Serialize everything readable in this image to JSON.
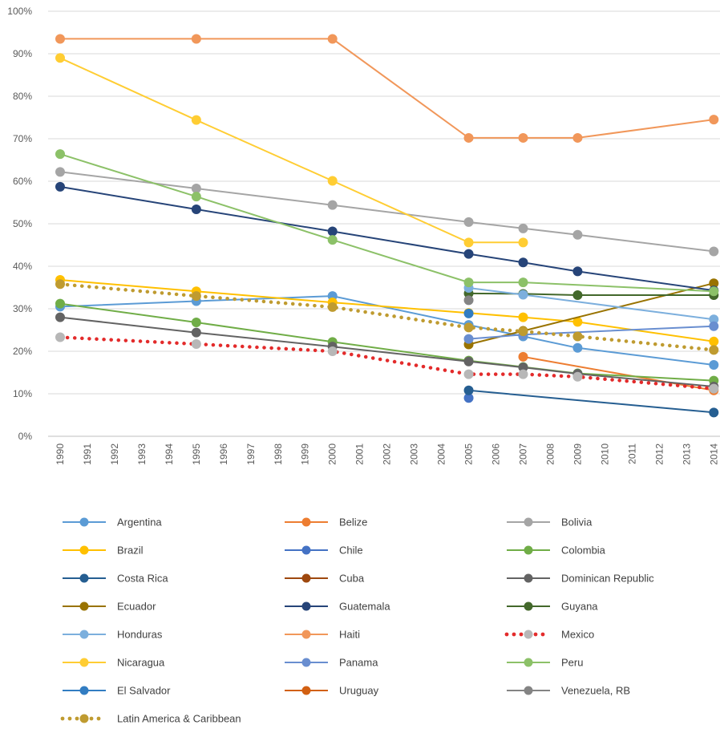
{
  "chart_data": {
    "type": "line",
    "title": "",
    "xlabel": "",
    "ylabel": "",
    "ylim": [
      0,
      100
    ],
    "y_ticks": [
      "0%",
      "10%",
      "20%",
      "30%",
      "40%",
      "50%",
      "60%",
      "70%",
      "80%",
      "90%",
      "100%"
    ],
    "x_ticks": [
      "1990",
      "1991",
      "1992",
      "1993",
      "1994",
      "1995",
      "1996",
      "1997",
      "1998",
      "1999",
      "2000",
      "2001",
      "2002",
      "2003",
      "2004",
      "2005",
      "2006",
      "2007",
      "2008",
      "2009",
      "2010",
      "2011",
      "2012",
      "2013",
      "2014"
    ],
    "grid": true,
    "legend_position": "bottom",
    "series": [
      {
        "name": "Argentina",
        "color": "#5b9bd5",
        "style": "solid",
        "points": [
          [
            1990,
            30.5
          ],
          [
            1995,
            31.8
          ],
          [
            2000,
            33.0
          ],
          [
            2005,
            26.2
          ],
          [
            2007,
            23.5
          ],
          [
            2009,
            20.8
          ],
          [
            2014,
            16.8
          ]
        ]
      },
      {
        "name": "Belize",
        "color": "#ed7d31",
        "style": "solid",
        "points": [
          [
            2007,
            18.7
          ],
          [
            2014,
            10.8
          ]
        ]
      },
      {
        "name": "Bolivia",
        "color": "#a5a5a5",
        "style": "solid",
        "points": [
          [
            1990,
            62.2
          ],
          [
            1995,
            58.3
          ],
          [
            2000,
            54.4
          ],
          [
            2005,
            50.4
          ],
          [
            2007,
            48.9
          ],
          [
            2009,
            47.4
          ],
          [
            2014,
            43.5
          ]
        ]
      },
      {
        "name": "Brazil",
        "color": "#ffc000",
        "style": "solid",
        "points": [
          [
            1990,
            36.8
          ],
          [
            1995,
            34.1
          ],
          [
            2000,
            31.5
          ],
          [
            2005,
            29.0
          ],
          [
            2007,
            28.0
          ],
          [
            2009,
            26.9
          ],
          [
            2014,
            22.3
          ]
        ]
      },
      {
        "name": "Chile",
        "color": "#4472c4",
        "style": "solid",
        "points": [
          [
            2005,
            9.0
          ]
        ]
      },
      {
        "name": "Colombia",
        "color": "#70ad47",
        "style": "solid",
        "points": [
          [
            1990,
            31.2
          ],
          [
            1995,
            26.8
          ],
          [
            2000,
            22.2
          ],
          [
            2005,
            17.8
          ],
          [
            2007,
            16.3
          ],
          [
            2009,
            14.8
          ],
          [
            2014,
            13.1
          ]
        ]
      },
      {
        "name": "Costa Rica",
        "color": "#255e91",
        "style": "solid",
        "points": [
          [
            2005,
            10.8
          ],
          [
            2014,
            5.6
          ]
        ]
      },
      {
        "name": "Cuba",
        "color": "#9e480e",
        "style": "solid",
        "points": []
      },
      {
        "name": "Dominican Republic",
        "color": "#636363",
        "style": "solid",
        "points": [
          [
            1990,
            28.0
          ],
          [
            1995,
            24.4
          ],
          [
            2000,
            21.1
          ],
          [
            2005,
            17.6
          ],
          [
            2007,
            16.2
          ],
          [
            2009,
            14.7
          ],
          [
            2014,
            11.7
          ]
        ]
      },
      {
        "name": "Ecuador",
        "color": "#997300",
        "style": "solid",
        "points": [
          [
            2005,
            21.6
          ],
          [
            2007,
            24.8
          ],
          [
            2014,
            36.0
          ]
        ]
      },
      {
        "name": "Guatemala",
        "color": "#264478",
        "style": "solid",
        "points": [
          [
            1990,
            58.7
          ],
          [
            1995,
            53.4
          ],
          [
            2000,
            48.2
          ],
          [
            2005,
            42.9
          ],
          [
            2007,
            40.9
          ],
          [
            2009,
            38.8
          ],
          [
            2014,
            34.3
          ]
        ]
      },
      {
        "name": "Guyana",
        "color": "#43682b",
        "style": "solid",
        "points": [
          [
            2005,
            33.6
          ],
          [
            2007,
            33.5
          ],
          [
            2009,
            33.2
          ],
          [
            2014,
            33.2
          ]
        ]
      },
      {
        "name": "Honduras",
        "color": "#7cafdd",
        "style": "solid",
        "points": [
          [
            2005,
            34.9
          ],
          [
            2007,
            33.3
          ],
          [
            2014,
            27.5
          ]
        ]
      },
      {
        "name": "Haiti",
        "color": "#f1975a",
        "style": "solid",
        "points": [
          [
            1990,
            93.5
          ],
          [
            1995,
            93.5
          ],
          [
            2000,
            93.5
          ],
          [
            2005,
            70.2
          ],
          [
            2007,
            70.2
          ],
          [
            2009,
            70.2
          ],
          [
            2014,
            74.5
          ]
        ]
      },
      {
        "name": "Mexico",
        "color": "#e32b2b",
        "marker_color": "#b7b7b7",
        "style": "dotted",
        "points": [
          [
            1990,
            23.3
          ],
          [
            1995,
            21.7
          ],
          [
            2000,
            20.0
          ],
          [
            2005,
            14.6
          ],
          [
            2007,
            14.6
          ],
          [
            2009,
            14.0
          ],
          [
            2014,
            11.2
          ]
        ]
      },
      {
        "name": "Nicaragua",
        "color": "#ffcd33",
        "style": "solid",
        "points": [
          [
            1990,
            89.0
          ],
          [
            1995,
            74.4
          ],
          [
            2000,
            60.1
          ],
          [
            2005,
            45.6
          ],
          [
            2007,
            45.6
          ]
        ]
      },
      {
        "name": "Panama",
        "color": "#698ed0",
        "style": "solid",
        "points": [
          [
            2005,
            22.9
          ],
          [
            2007,
            23.9
          ],
          [
            2014,
            25.9
          ]
        ]
      },
      {
        "name": "Peru",
        "color": "#8cc168",
        "style": "solid",
        "points": [
          [
            1990,
            66.4
          ],
          [
            1995,
            56.4
          ],
          [
            2000,
            46.2
          ],
          [
            2005,
            36.2
          ],
          [
            2007,
            36.2
          ],
          [
            2014,
            34.1
          ]
        ]
      },
      {
        "name": "El Salvador",
        "color": "#327dc2",
        "style": "solid",
        "points": [
          [
            2005,
            28.9
          ]
        ]
      },
      {
        "name": "Uruguay",
        "color": "#d26012",
        "style": "solid",
        "points": []
      },
      {
        "name": "Venezuela, RB",
        "color": "#848484",
        "style": "solid",
        "points": [
          [
            2005,
            32.0
          ]
        ]
      },
      {
        "name": "Latin America & Caribbean",
        "color": "#bf9b30",
        "style": "dotted",
        "points": [
          [
            1990,
            35.8
          ],
          [
            1995,
            33.0
          ],
          [
            2000,
            30.4
          ],
          [
            2005,
            25.6
          ],
          [
            2007,
            24.7
          ],
          [
            2009,
            23.5
          ],
          [
            2014,
            20.3
          ]
        ]
      }
    ]
  }
}
